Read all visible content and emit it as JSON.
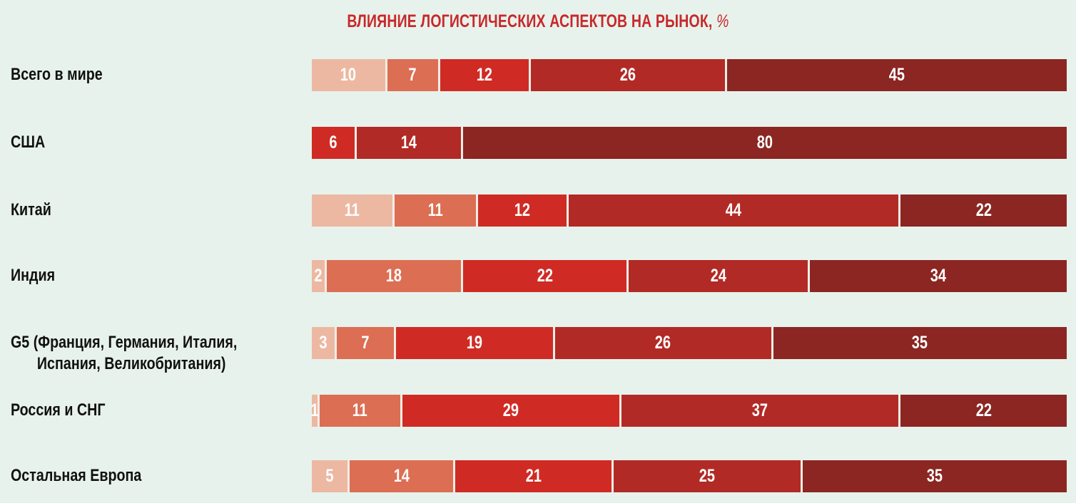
{
  "chart_data": {
    "type": "bar",
    "orientation": "horizontal",
    "stacked": true,
    "title": "ВЛИЯНИЕ ЛОГИСТИЧЕСКИХ АСПЕКТОВ НА РЫНОК,",
    "title_unit": "%",
    "categories": [
      {
        "line1": "Всего в мире",
        "line2": ""
      },
      {
        "line1": "США",
        "line2": ""
      },
      {
        "line1": "Китай",
        "line2": ""
      },
      {
        "line1": "Индия",
        "line2": ""
      },
      {
        "line1": "G5 (Франция, Германия, Италия,",
        "line2": "Испания, Великобритания)"
      },
      {
        "line1": "Россия и СНГ",
        "line2": ""
      },
      {
        "line1": "Остальная Европа",
        "line2": ""
      }
    ],
    "series": [
      {
        "color": "#ecb8a2",
        "values": [
          10,
          0,
          11,
          2,
          3,
          1,
          5
        ]
      },
      {
        "color": "#dc6e53",
        "values": [
          7,
          0,
          11,
          18,
          7,
          11,
          14
        ]
      },
      {
        "color": "#cf2b24",
        "values": [
          12,
          6,
          12,
          22,
          19,
          29,
          21
        ]
      },
      {
        "color": "#b22a25",
        "values": [
          26,
          14,
          44,
          24,
          26,
          37,
          25
        ]
      },
      {
        "color": "#8b2622",
        "values": [
          45,
          80,
          22,
          34,
          35,
          22,
          35
        ]
      }
    ],
    "xlim": [
      0,
      100
    ],
    "grid": false,
    "legend": "none"
  }
}
